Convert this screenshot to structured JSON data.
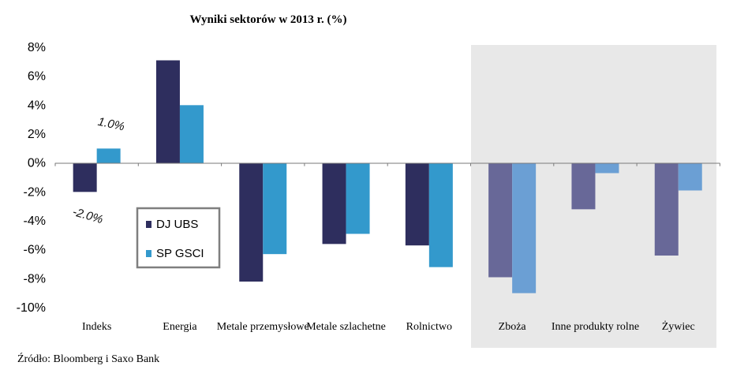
{
  "chart_data": {
    "type": "bar",
    "title": "Wyniki sektorów w 2013 r. (%)",
    "categories": [
      "Indeks",
      "Energia",
      "Metale przemysłowe",
      "Metale szlachetne",
      "Rolnictwo",
      "Zboża",
      "Inne produkty rolne",
      "Żywiec"
    ],
    "series": [
      {
        "name": "DJ UBS",
        "values": [
          -2.0,
          7.1,
          -8.2,
          -5.6,
          -5.7,
          -7.9,
          -3.2,
          -6.4
        ],
        "color": "#2e2e5e",
        "highlight_color": "#686898"
      },
      {
        "name": "SP GSCI",
        "values": [
          1.0,
          4.0,
          -6.3,
          -4.9,
          -7.2,
          -9.0,
          -0.7,
          -1.9
        ],
        "color": "#3399cc",
        "highlight_color": "#6b9fd4"
      }
    ],
    "ylim": [
      -10,
      8
    ],
    "yticks": [
      "8%",
      "6%",
      "4%",
      "2%",
      "0%",
      "-2%",
      "-4%",
      "-6%",
      "-8%",
      "-10%"
    ],
    "annotations": [
      "1.0%",
      "-2.0%"
    ],
    "highlighted_categories": [
      "Zboża",
      "Inne produkty rolne",
      "Żywiec"
    ],
    "legend_position": "lower-left",
    "source": "Źródło: Bloomberg i Saxo Bank"
  }
}
